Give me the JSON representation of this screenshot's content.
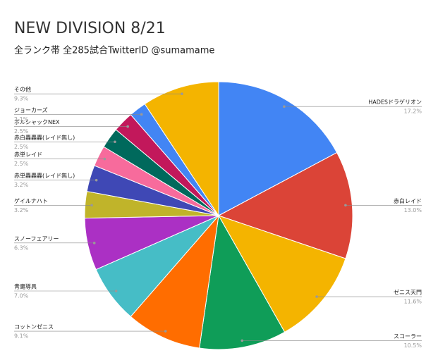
{
  "chart_data": {
    "type": "pie",
    "title": "NEW DIVISION 8/21",
    "subtitle": "全ランク帯 全285試合TwitterID @sumamame",
    "categories": [
      "HADESドラゲリオン",
      "赤白レイド",
      "ゼニス天門",
      "スコーラー",
      "コットンゼニス",
      "青魔導具",
      "スノーフェアリー",
      "ゲイルナハト",
      "赤単轟轟轟(レイド無し)",
      "赤単レイド",
      "赤白轟轟轟(レイド無し)",
      "ボルシャックNEX",
      "ジョーカーズ",
      "その他"
    ],
    "values": [
      17.2,
      13.0,
      11.6,
      10.5,
      9.1,
      7.0,
      6.3,
      3.2,
      3.2,
      2.5,
      2.5,
      2.5,
      2.1,
      9.3
    ],
    "value_labels": [
      "17.2%",
      "13.0%",
      "11.6%",
      "10.5%",
      "9.1%",
      "7.0%",
      "6.3%",
      "3.2%",
      "3.2%",
      "2.5%",
      "2.5%",
      "2.5%",
      "2.1%",
      "9.3%"
    ],
    "colors": [
      "#4285f4",
      "#db4437",
      "#f4b400",
      "#0f9d58",
      "#ff6d00",
      "#46bdc6",
      "#ab30c4",
      "#c0b42a",
      "#3f48b5",
      "#f76b9c",
      "#00695c",
      "#c2185b",
      "#4285f4",
      "#f4b400"
    ]
  }
}
